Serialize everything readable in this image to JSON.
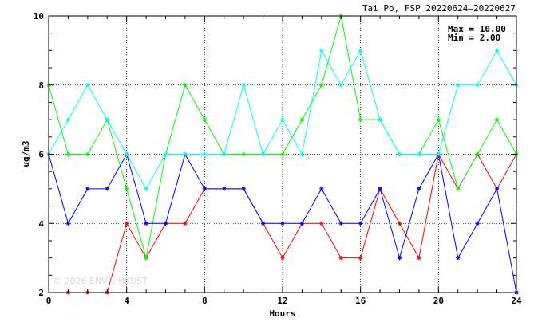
{
  "chart_data": {
    "type": "line",
    "title": "Tai Po, FSP 20220624—20220627",
    "xlabel": "Hours",
    "ylabel": "ug/m3",
    "xlim": [
      0,
      24
    ],
    "ylim": [
      2,
      10
    ],
    "x_ticks": [
      0,
      4,
      8,
      12,
      16,
      20,
      24
    ],
    "y_ticks": [
      2,
      4,
      6,
      8,
      10
    ],
    "grid": true,
    "stats": {
      "max": "Max = 10.00",
      "min": "Min =  2.00"
    },
    "watermark": "© 2026 ENVF, HKUST",
    "x": [
      0,
      1,
      2,
      3,
      4,
      5,
      6,
      7,
      8,
      9,
      10,
      11,
      12,
      13,
      14,
      15,
      16,
      17,
      18,
      19,
      20,
      21,
      22,
      23,
      24
    ],
    "series": [
      {
        "color": "#ff0000",
        "values": [
          null,
          2,
          2,
          2,
          4,
          3,
          4,
          4,
          5,
          5,
          5,
          4,
          3,
          4,
          4,
          3,
          3,
          5,
          4,
          3,
          6,
          5,
          6,
          5,
          6
        ]
      },
      {
        "color": "#00ff00",
        "values": [
          8,
          6,
          6,
          7,
          5,
          3,
          6,
          8,
          7,
          6,
          6,
          6,
          6,
          7,
          8,
          10,
          7,
          7,
          6,
          6,
          7,
          5,
          6,
          7,
          6
        ]
      },
      {
        "color": "#0000ff",
        "values": [
          6,
          4,
          5,
          5,
          6,
          4,
          4,
          6,
          5,
          5,
          5,
          4,
          4,
          4,
          5,
          4,
          4,
          5,
          3,
          5,
          6,
          3,
          4,
          5,
          2
        ]
      },
      {
        "color": "#00ffff",
        "values": [
          6,
          7,
          8,
          7,
          6,
          5,
          6,
          6,
          6,
          6,
          8,
          6,
          7,
          6,
          9,
          8,
          9,
          7,
          6,
          6,
          6,
          8,
          8,
          9,
          8
        ]
      }
    ]
  }
}
